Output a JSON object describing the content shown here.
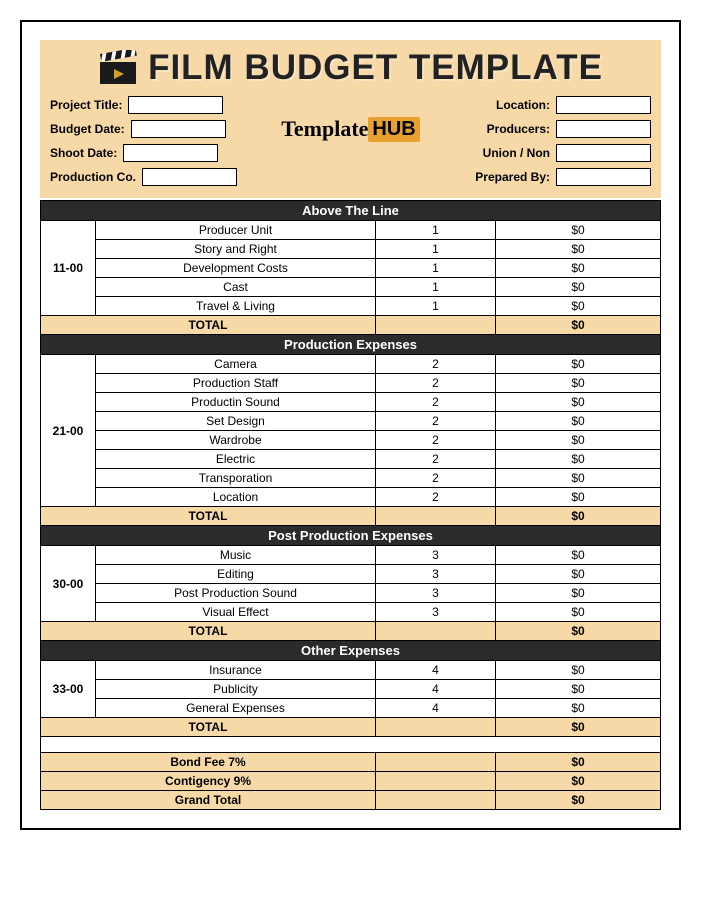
{
  "title": "FILM BUDGET TEMPLATE",
  "logo": {
    "part1": "Template",
    "part2": "HUB"
  },
  "colors": {
    "header_bg": "#f7d9a8",
    "section_bg": "#2b2b2b",
    "section_fg": "#ffffff",
    "total_bg": "#f7d9a8",
    "border": "#000000",
    "page_bg": "#ffffff"
  },
  "form": {
    "left": [
      {
        "label": "Project Title:",
        "value": ""
      },
      {
        "label": "Budget Date:",
        "value": ""
      },
      {
        "label": "Shoot Date:",
        "value": ""
      },
      {
        "label": "Production Co.",
        "value": ""
      }
    ],
    "right": [
      {
        "label": "Location:",
        "value": ""
      },
      {
        "label": "Producers:",
        "value": ""
      },
      {
        "label": "Union / Non",
        "value": ""
      },
      {
        "label": "Prepared By:",
        "value": ""
      }
    ]
  },
  "sections": [
    {
      "name": "Above The Line",
      "code": "11-00",
      "rows": [
        {
          "desc": "Producer Unit",
          "qty": "1",
          "amt": "$0"
        },
        {
          "desc": "Story and Right",
          "qty": "1",
          "amt": "$0"
        },
        {
          "desc": "Development Costs",
          "qty": "1",
          "amt": "$0"
        },
        {
          "desc": "Cast",
          "qty": "1",
          "amt": "$0"
        },
        {
          "desc": "Travel & Living",
          "qty": "1",
          "amt": "$0"
        }
      ],
      "total_label": "TOTAL",
      "total_amt": "$0"
    },
    {
      "name": "Production Expenses",
      "code": "21-00",
      "rows": [
        {
          "desc": "Camera",
          "qty": "2",
          "amt": "$0"
        },
        {
          "desc": "Production Staff",
          "qty": "2",
          "amt": "$0"
        },
        {
          "desc": "Productin Sound",
          "qty": "2",
          "amt": "$0"
        },
        {
          "desc": "Set Design",
          "qty": "2",
          "amt": "$0"
        },
        {
          "desc": "Wardrobe",
          "qty": "2",
          "amt": "$0"
        },
        {
          "desc": "Electric",
          "qty": "2",
          "amt": "$0"
        },
        {
          "desc": "Transporation",
          "qty": "2",
          "amt": "$0"
        },
        {
          "desc": "Location",
          "qty": "2",
          "amt": "$0"
        }
      ],
      "total_label": "TOTAL",
      "total_amt": "$0"
    },
    {
      "name": "Post Production Expenses",
      "code": "30-00",
      "rows": [
        {
          "desc": "Music",
          "qty": "3",
          "amt": "$0"
        },
        {
          "desc": "Editing",
          "qty": "3",
          "amt": "$0"
        },
        {
          "desc": "Post Production Sound",
          "qty": "3",
          "amt": "$0"
        },
        {
          "desc": "Visual Effect",
          "qty": "3",
          "amt": "$0"
        }
      ],
      "total_label": "TOTAL",
      "total_amt": "$0"
    },
    {
      "name": "Other Expenses",
      "code": "33-00",
      "rows": [
        {
          "desc": "Insurance",
          "qty": "4",
          "amt": "$0"
        },
        {
          "desc": "Publicity",
          "qty": "4",
          "amt": "$0"
        },
        {
          "desc": "General Expenses",
          "qty": "4",
          "amt": "$0"
        }
      ],
      "total_label": "TOTAL",
      "total_amt": "$0"
    }
  ],
  "summary": [
    {
      "label": "Bond Fee 7%",
      "amt": "$0"
    },
    {
      "label": "Contigency 9%",
      "amt": "$0"
    },
    {
      "label": "Grand Total",
      "amt": "$0"
    }
  ]
}
